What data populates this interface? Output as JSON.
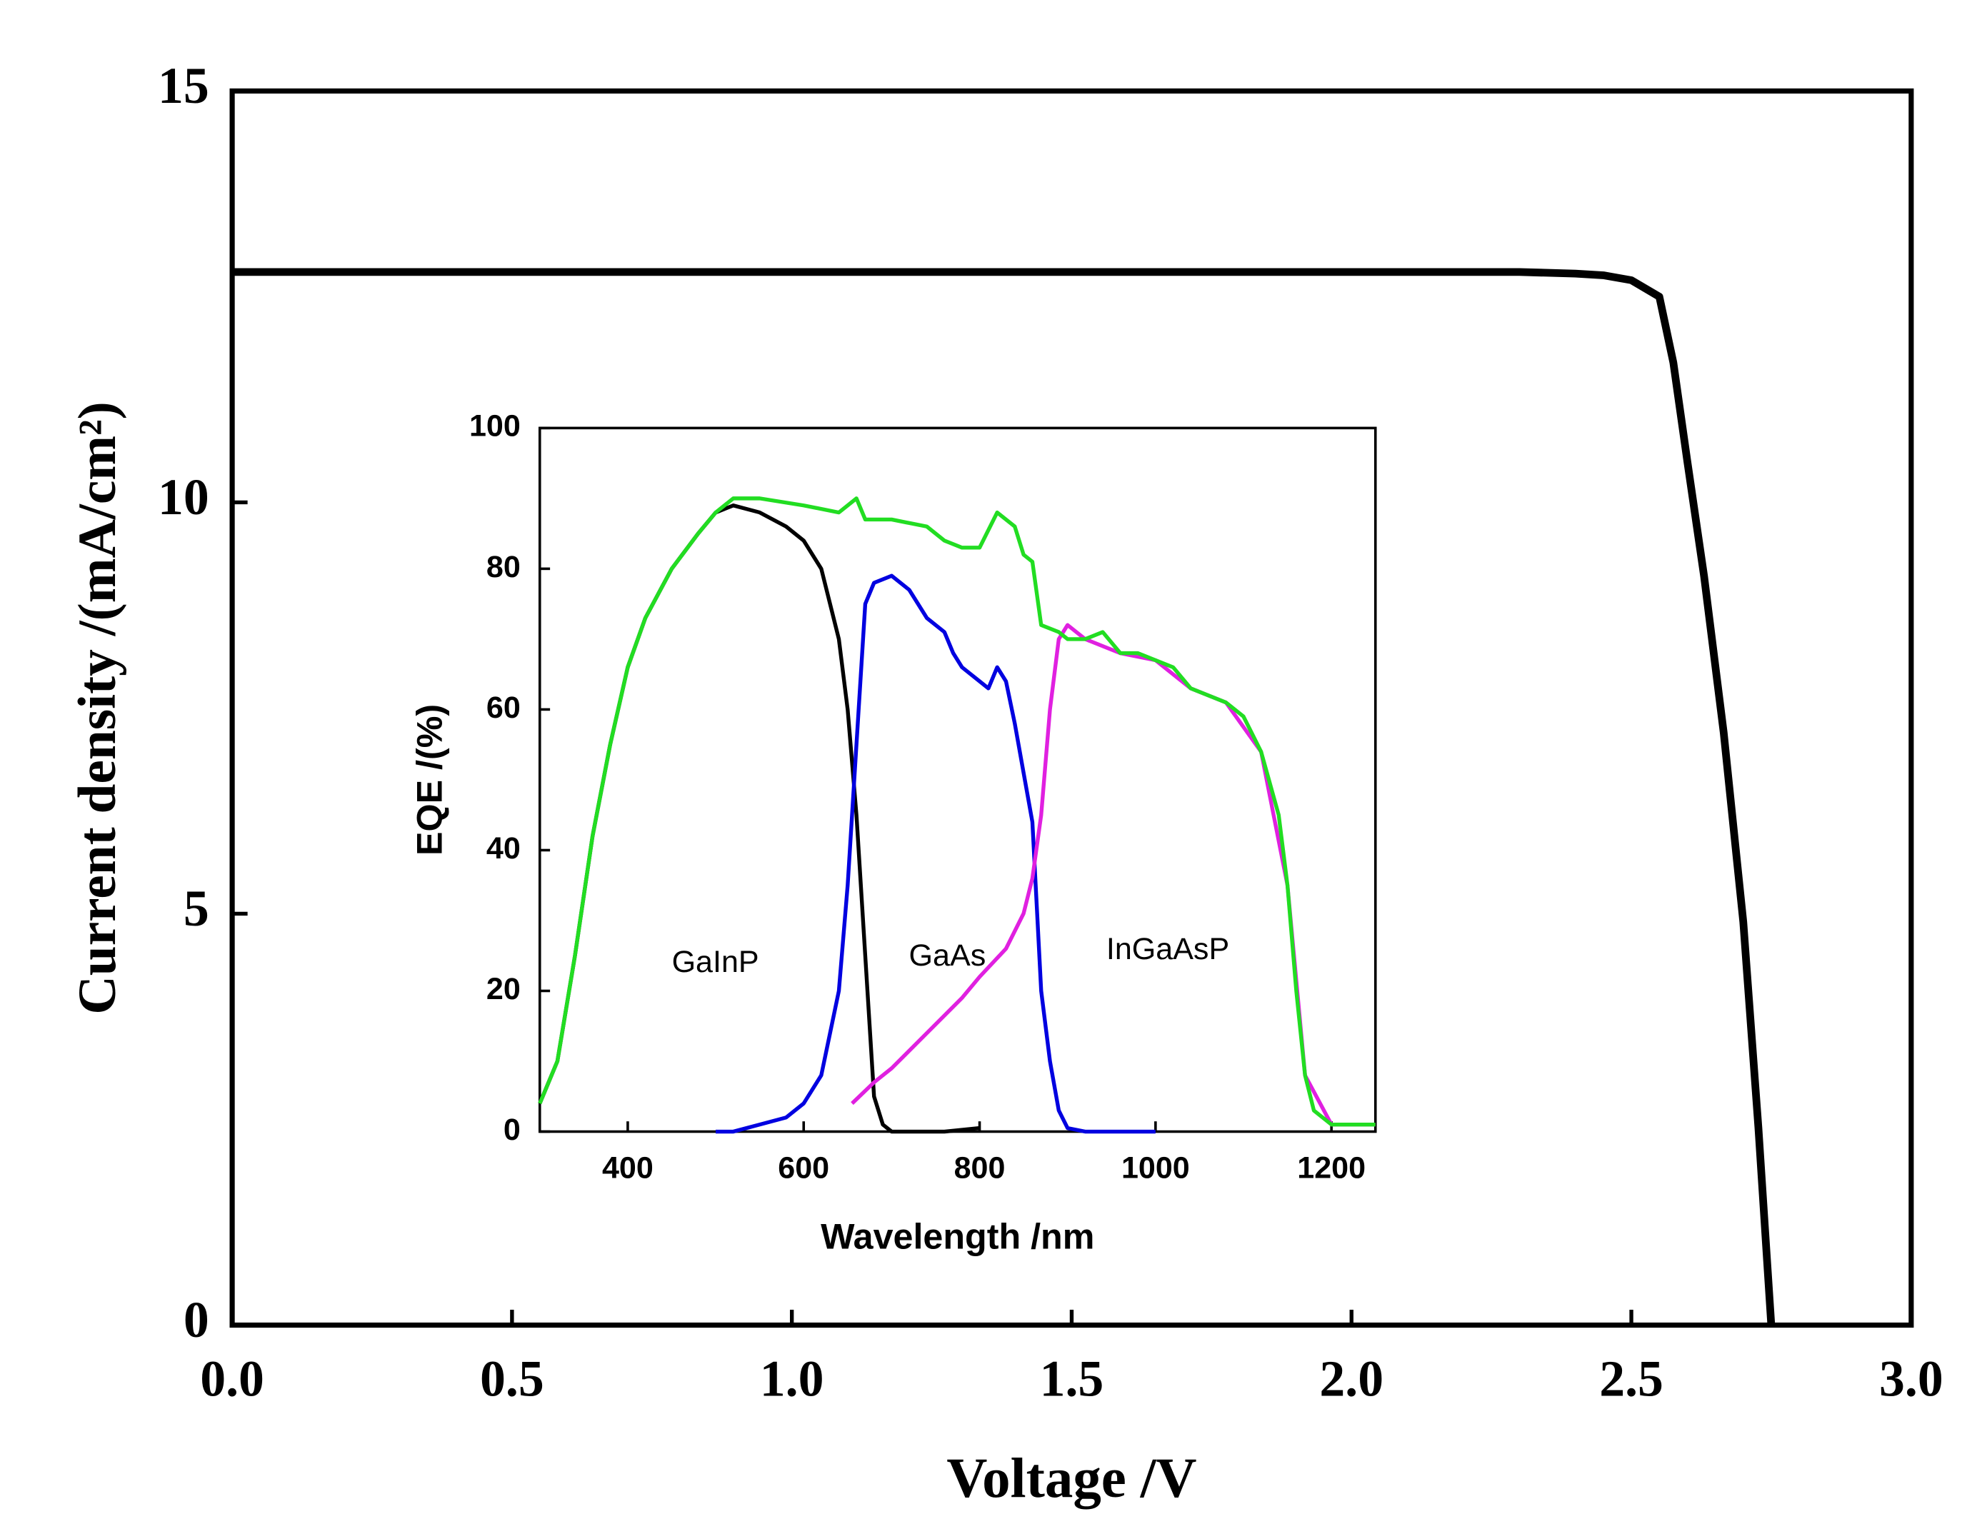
{
  "chart_data": [
    {
      "type": "line",
      "xlabel": "Voltage /V",
      "ylabel": "Current density /(mA/cm²)",
      "x": [
        0,
        0.5,
        1.0,
        1.5,
        2.0,
        2.3,
        2.4,
        2.45,
        2.5,
        2.55,
        2.575,
        2.6,
        2.63,
        2.665,
        2.7,
        2.727,
        2.75
      ],
      "values": [
        12.8,
        12.8,
        12.8,
        12.8,
        12.8,
        12.8,
        12.78,
        12.76,
        12.7,
        12.5,
        11.7,
        10.5,
        9.1,
        7.2,
        4.9,
        2.4,
        0
      ],
      "color": "#000000",
      "xlim": [
        0,
        3
      ],
      "ylim": [
        0,
        15
      ],
      "xticks": [
        {
          "value": 0,
          "label": "0.0"
        },
        0.5,
        {
          "value": 1,
          "label": "1.0"
        },
        1.5,
        {
          "value": 2,
          "label": "2.0"
        },
        2.5,
        {
          "value": 3,
          "label": "3.0"
        }
      ],
      "yticks": [
        0,
        5,
        10,
        15
      ]
    },
    {
      "type": "line",
      "xlabel": "Wavelength /nm",
      "ylabel": "EQE /(%)",
      "xlim": [
        300,
        1250
      ],
      "ylim": [
        0,
        100
      ],
      "xticks": [
        400,
        600,
        800,
        1000,
        1200
      ],
      "yticks": [
        0,
        20,
        40,
        60,
        80,
        100
      ],
      "annotations": [
        "GaInP",
        "GaAs",
        "InGaAsP"
      ],
      "series": [
        {
          "color": "#000000",
          "x": [
            300,
            320,
            340,
            360,
            380,
            400,
            420,
            450,
            480,
            500,
            520,
            550,
            580,
            600,
            620,
            640,
            650,
            660,
            670,
            680,
            690,
            700,
            760,
            800
          ],
          "values": [
            4,
            10,
            25,
            42,
            55,
            66,
            73,
            80,
            85,
            88,
            89,
            88,
            86,
            84,
            80,
            70,
            60,
            45,
            25,
            5,
            1,
            0,
            0,
            0.5
          ]
        },
        {
          "color": "#0000e0",
          "x": [
            500,
            520,
            550,
            580,
            600,
            620,
            640,
            650,
            660,
            670,
            680,
            700,
            720,
            740,
            760,
            770,
            780,
            800,
            810,
            820,
            830,
            840,
            850,
            860,
            870,
            880,
            890,
            900,
            920,
            1000
          ],
          "values": [
            0,
            0,
            1,
            2,
            4,
            8,
            20,
            35,
            55,
            75,
            78,
            79,
            77,
            73,
            71,
            68,
            66,
            64,
            63,
            66,
            64,
            58,
            51,
            44,
            20,
            10,
            3,
            0.5,
            0,
            0
          ]
        },
        {
          "color": "#e020e0",
          "x": [
            655,
            680,
            700,
            740,
            780,
            800,
            830,
            850,
            860,
            870,
            880,
            890,
            900,
            920,
            960,
            1000,
            1040,
            1080,
            1120,
            1150,
            1170,
            1200,
            1250
          ],
          "values": [
            4,
            7,
            9,
            14,
            19,
            22,
            26,
            31,
            36,
            45,
            60,
            70,
            72,
            70,
            68,
            67,
            63,
            61,
            54,
            35,
            8,
            1,
            1
          ]
        },
        {
          "color": "#22dd22",
          "x": [
            300,
            320,
            340,
            360,
            380,
            400,
            420,
            450,
            480,
            500,
            520,
            550,
            600,
            640,
            650,
            660,
            670,
            700,
            740,
            760,
            780,
            800,
            820,
            840,
            850,
            860,
            870,
            890,
            900,
            920,
            940,
            960,
            980,
            1000,
            1020,
            1040,
            1080,
            1100,
            1120,
            1140,
            1150,
            1160,
            1170,
            1180,
            1200,
            1250
          ],
          "values": [
            4,
            10,
            25,
            42,
            55,
            66,
            73,
            80,
            85,
            88,
            90,
            90,
            89,
            88,
            89,
            90,
            87,
            87,
            86,
            84,
            83,
            83,
            88,
            86,
            82,
            81,
            72,
            71,
            70,
            70,
            71,
            68,
            68,
            67,
            66,
            63,
            61,
            59,
            54,
            45,
            35,
            20,
            8,
            3,
            1,
            1
          ]
        }
      ]
    }
  ]
}
